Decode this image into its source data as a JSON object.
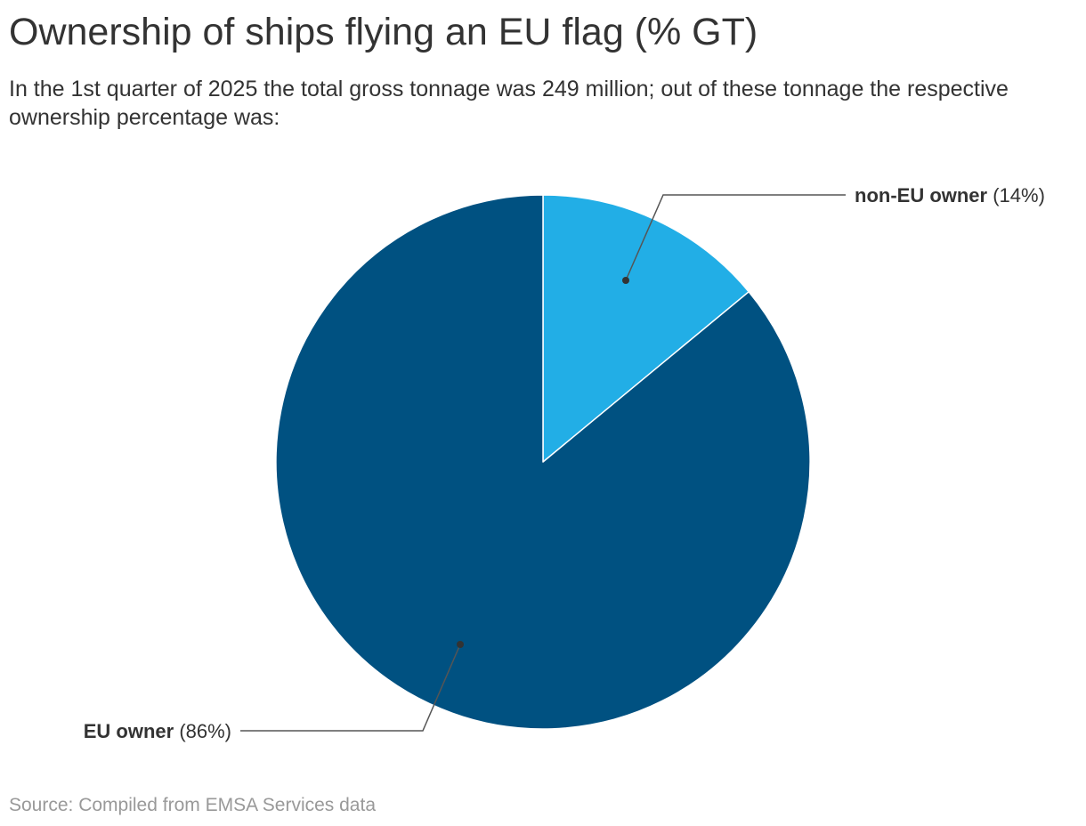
{
  "chart_data": {
    "type": "pie",
    "title": "Ownership of ships flying an EU flag (% GT)",
    "subtitle": "In the 1st quarter of 2025 the total gross tonnage was 249 million; out of these tonnage the respective ownership percentage was:",
    "source": "Source: Compiled from EMSA Services data",
    "slices": [
      {
        "label": "non-EU owner",
        "value": 14,
        "value_label": "(14%)",
        "color": "#22aee6"
      },
      {
        "label": "EU owner",
        "value": 86,
        "value_label": "(86%)",
        "color": "#005181"
      }
    ],
    "legend": "none"
  }
}
